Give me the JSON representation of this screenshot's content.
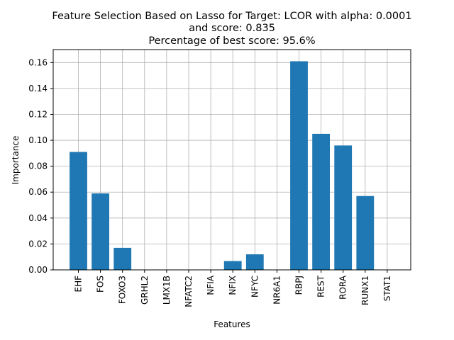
{
  "chart_data": {
    "type": "bar",
    "title": [
      "Feature Selection Based on Lasso for Target: LCOR with alpha: 0.0001",
      "and score: 0.835",
      "Percentage of best score: 95.6%"
    ],
    "xlabel": "Features",
    "ylabel": "Importance",
    "categories": [
      "EHF",
      "FOS",
      "FOXO3",
      "GRHL2",
      "LMX1B",
      "NFATC2",
      "NFIA",
      "NFIX",
      "NFYC",
      "NR6A1",
      "RBPJ",
      "REST",
      "RORA",
      "RUNX1",
      "STAT1"
    ],
    "values": [
      0.091,
      0.059,
      0.017,
      0.0,
      0.0,
      0.0,
      0.0,
      0.0068,
      0.012,
      0.0,
      0.161,
      0.105,
      0.096,
      0.057,
      0.0
    ],
    "ylim": [
      0.0,
      0.17
    ],
    "yticks": [
      "0.00",
      "0.02",
      "0.04",
      "0.06",
      "0.08",
      "0.10",
      "0.12",
      "0.14",
      "0.16"
    ],
    "grid": true,
    "bar_color": "#1f77b4",
    "grid_color": "#b0b0b0"
  }
}
